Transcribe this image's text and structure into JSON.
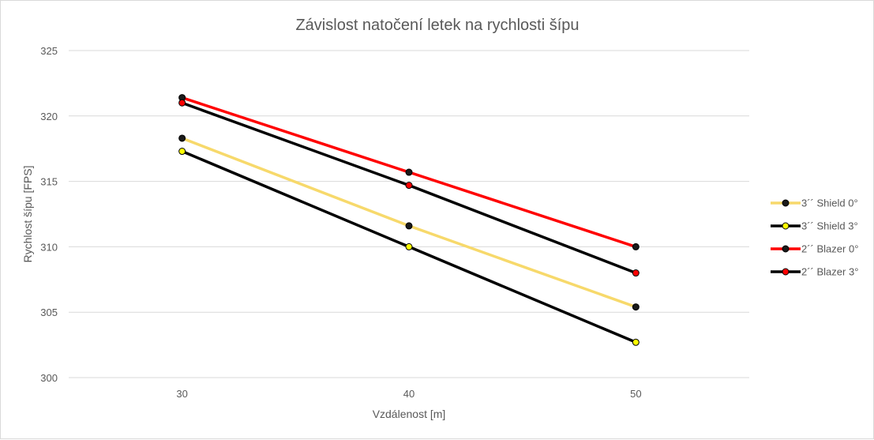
{
  "chart_data": {
    "type": "line",
    "title": "Závislost natočení letek na rychlosti šípu",
    "xlabel": "Vzdálenost [m]",
    "ylabel": "Rychlost šípu [FPS]",
    "x": [
      30,
      40,
      50
    ],
    "x_tick_labels": [
      "30",
      "40",
      "50"
    ],
    "ylim": [
      300,
      325
    ],
    "y_ticks": [
      300,
      305,
      310,
      315,
      320,
      325
    ],
    "y_tick_labels": [
      "300",
      "305",
      "310",
      "315",
      "320",
      "325"
    ],
    "grid": "horizontal",
    "legend_position": "right",
    "series": [
      {
        "name": "3´´ Shield 0°",
        "values": [
          318.3,
          311.6,
          305.4
        ],
        "line_color": "#f7d96b",
        "marker_fill": "#1a1a1a",
        "marker_edge": "#000000"
      },
      {
        "name": "3´´ Shield 3°",
        "values": [
          317.3,
          310.0,
          302.7
        ],
        "line_color": "#000000",
        "marker_fill": "#ffff00",
        "marker_edge": "#000000"
      },
      {
        "name": "2´´ Blazer 0°",
        "values": [
          321.4,
          315.7,
          310.0
        ],
        "line_color": "#ff0000",
        "marker_fill": "#1a1a1a",
        "marker_edge": "#000000"
      },
      {
        "name": "2´´ Blazer 3°",
        "values": [
          321.0,
          314.7,
          308.0
        ],
        "line_color": "#000000",
        "marker_fill": "#ff0000",
        "marker_edge": "#000000"
      }
    ]
  }
}
